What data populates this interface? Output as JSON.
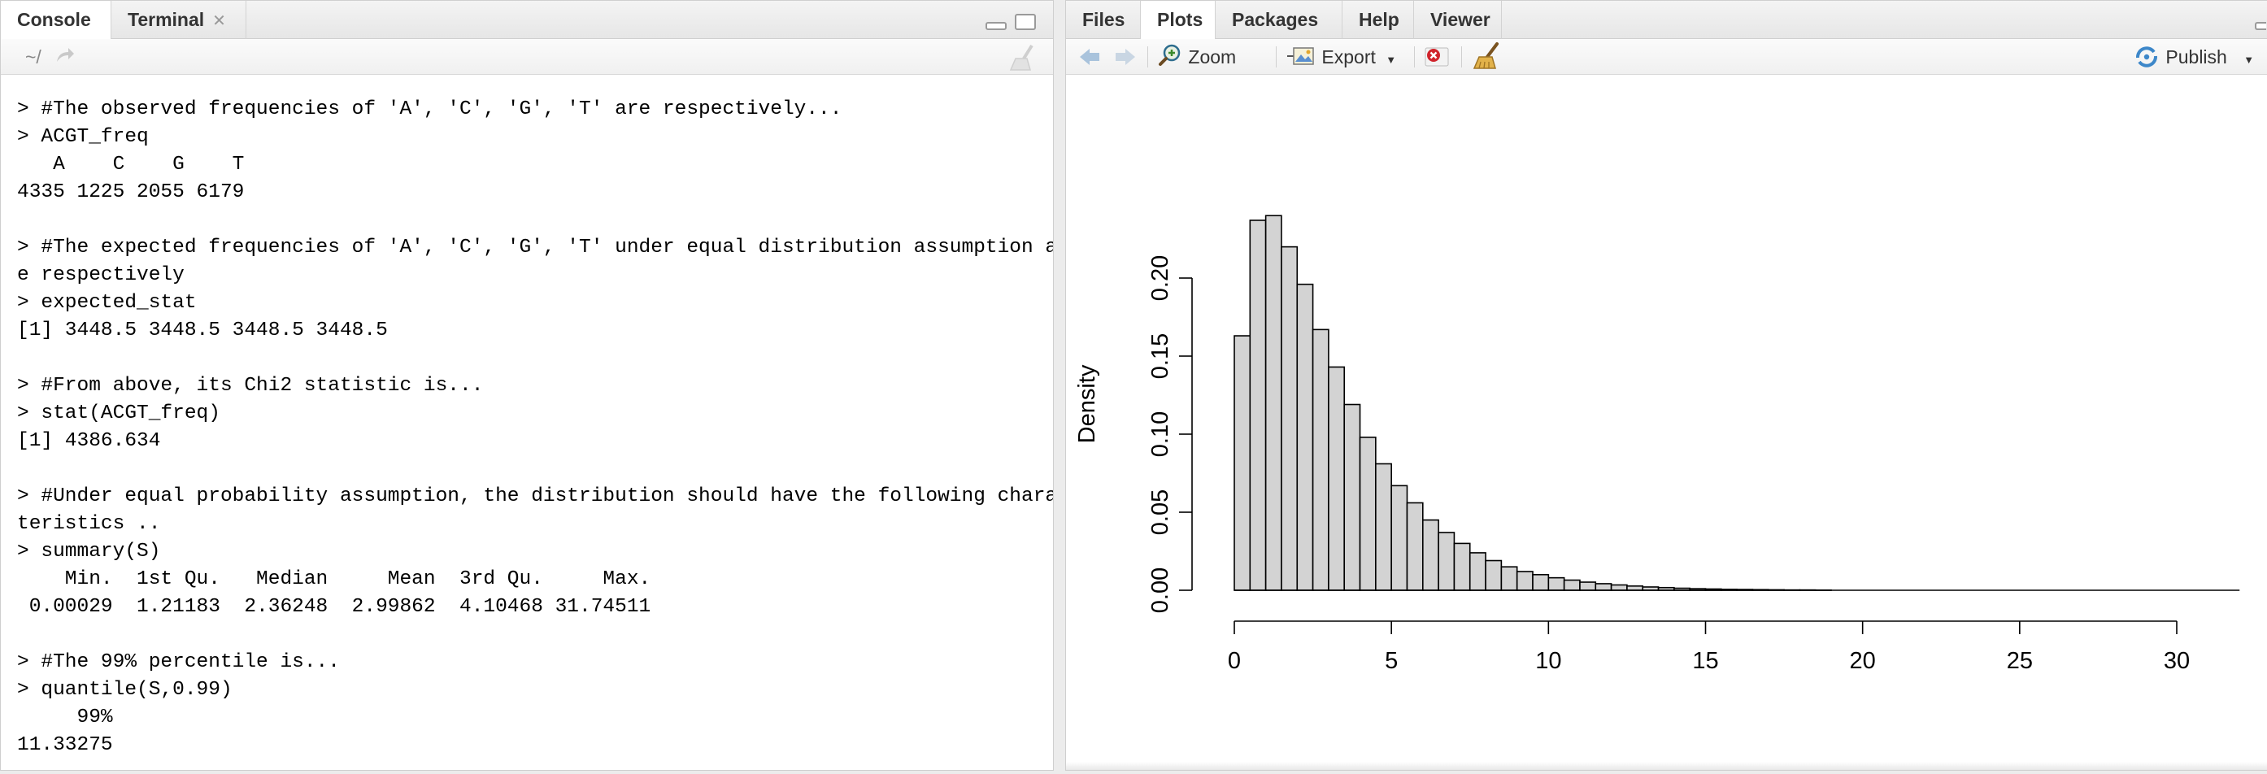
{
  "left_pane": {
    "tabs": [
      {
        "label": "Console"
      },
      {
        "label": "Terminal"
      }
    ],
    "path_label": "~/",
    "console_lines": [
      "> #The observed frequencies of 'A', 'C', 'G', 'T' are respectively...",
      "> ACGT_freq",
      "   A    C    G    T ",
      "4335 1225 2055 6179 ",
      "",
      "> #The expected frequencies of 'A', 'C', 'G', 'T' under equal distribution assumption ar",
      "e respectively",
      "> expected_stat",
      "[1] 3448.5 3448.5 3448.5 3448.5",
      "",
      "> #From above, its Chi2 statistic is...",
      "> stat(ACGT_freq)",
      "[1] 4386.634",
      "",
      "> #Under equal probability assumption, the distribution should have the following charac",
      "teristics ..",
      "> summary(S)",
      "    Min.  1st Qu.   Median     Mean  3rd Qu.     Max. ",
      " 0.00029  1.21183  2.36248  2.99862  4.10468 31.74511 ",
      "",
      "> #The 99% percentile is...",
      "> quantile(S,0.99)",
      "     99% ",
      "11.33275 "
    ]
  },
  "right_pane": {
    "tabs": [
      {
        "label": "Files"
      },
      {
        "label": "Plots"
      },
      {
        "label": "Packages"
      },
      {
        "label": "Help"
      },
      {
        "label": "Viewer"
      }
    ],
    "toolbar": {
      "zoom_label": "Zoom",
      "export_label": "Export",
      "publish_label": "Publish"
    }
  },
  "chart_data": {
    "type": "bar",
    "ylabel": "Density",
    "xlim": [
      0,
      32
    ],
    "ylim": [
      0,
      0.24
    ],
    "bin_width": 0.5,
    "x_ticks": [
      "0",
      "5",
      "10",
      "15",
      "20",
      "25",
      "30"
    ],
    "y_ticks": [
      "0.00",
      "0.05",
      "0.10",
      "0.15",
      "0.20"
    ],
    "values": [
      0.163,
      0.237,
      0.24,
      0.22,
      0.196,
      0.167,
      0.143,
      0.119,
      0.098,
      0.081,
      0.067,
      0.056,
      0.045,
      0.037,
      0.03,
      0.024,
      0.019,
      0.015,
      0.012,
      0.01,
      0.008,
      0.0065,
      0.0052,
      0.0042,
      0.0034,
      0.0027,
      0.0021,
      0.0017,
      0.0013,
      0.001,
      0.0008,
      0.0006,
      0.0005,
      0.0004,
      0.0003,
      0.0002,
      0.0002,
      0.0001
    ],
    "colors": {
      "bar_fill": "#d3d3d3",
      "bar_stroke": "#000000"
    }
  }
}
